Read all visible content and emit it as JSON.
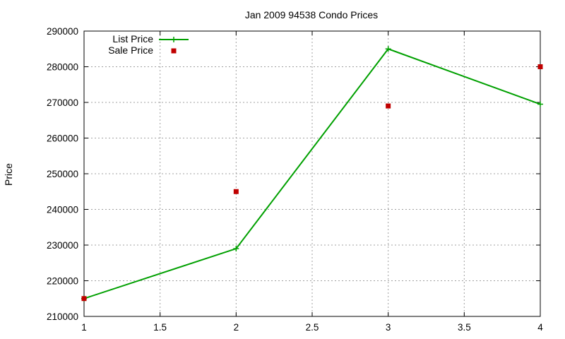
{
  "chart_data": {
    "type": "line",
    "title": "Jan 2009 94538 Condo Prices",
    "xlabel": "",
    "ylabel": "Price",
    "xlim": [
      1,
      4
    ],
    "ylim": [
      210000,
      290000
    ],
    "xticks": [
      1,
      1.5,
      2,
      2.5,
      3,
      3.5,
      4
    ],
    "xtick_labels": [
      "1",
      "1.5",
      "2",
      "2.5",
      "3",
      "3.5",
      "4"
    ],
    "yticks": [
      210000,
      220000,
      230000,
      240000,
      250000,
      260000,
      270000,
      280000,
      290000
    ],
    "ytick_labels": [
      "210000",
      "220000",
      "230000",
      "240000",
      "250000",
      "260000",
      "270000",
      "280000",
      "290000"
    ],
    "grid": true,
    "legend_position": "top-left",
    "series": [
      {
        "name": "List Price",
        "style": "line-with-plus-markers",
        "color": "#00a000",
        "x": [
          1,
          2,
          3,
          4
        ],
        "y": [
          215000,
          229000,
          285000,
          269500
        ]
      },
      {
        "name": "Sale Price",
        "style": "square-markers",
        "color": "#c00000",
        "x": [
          1,
          2,
          3,
          4
        ],
        "y": [
          215000,
          245000,
          269000,
          280000
        ]
      }
    ]
  }
}
